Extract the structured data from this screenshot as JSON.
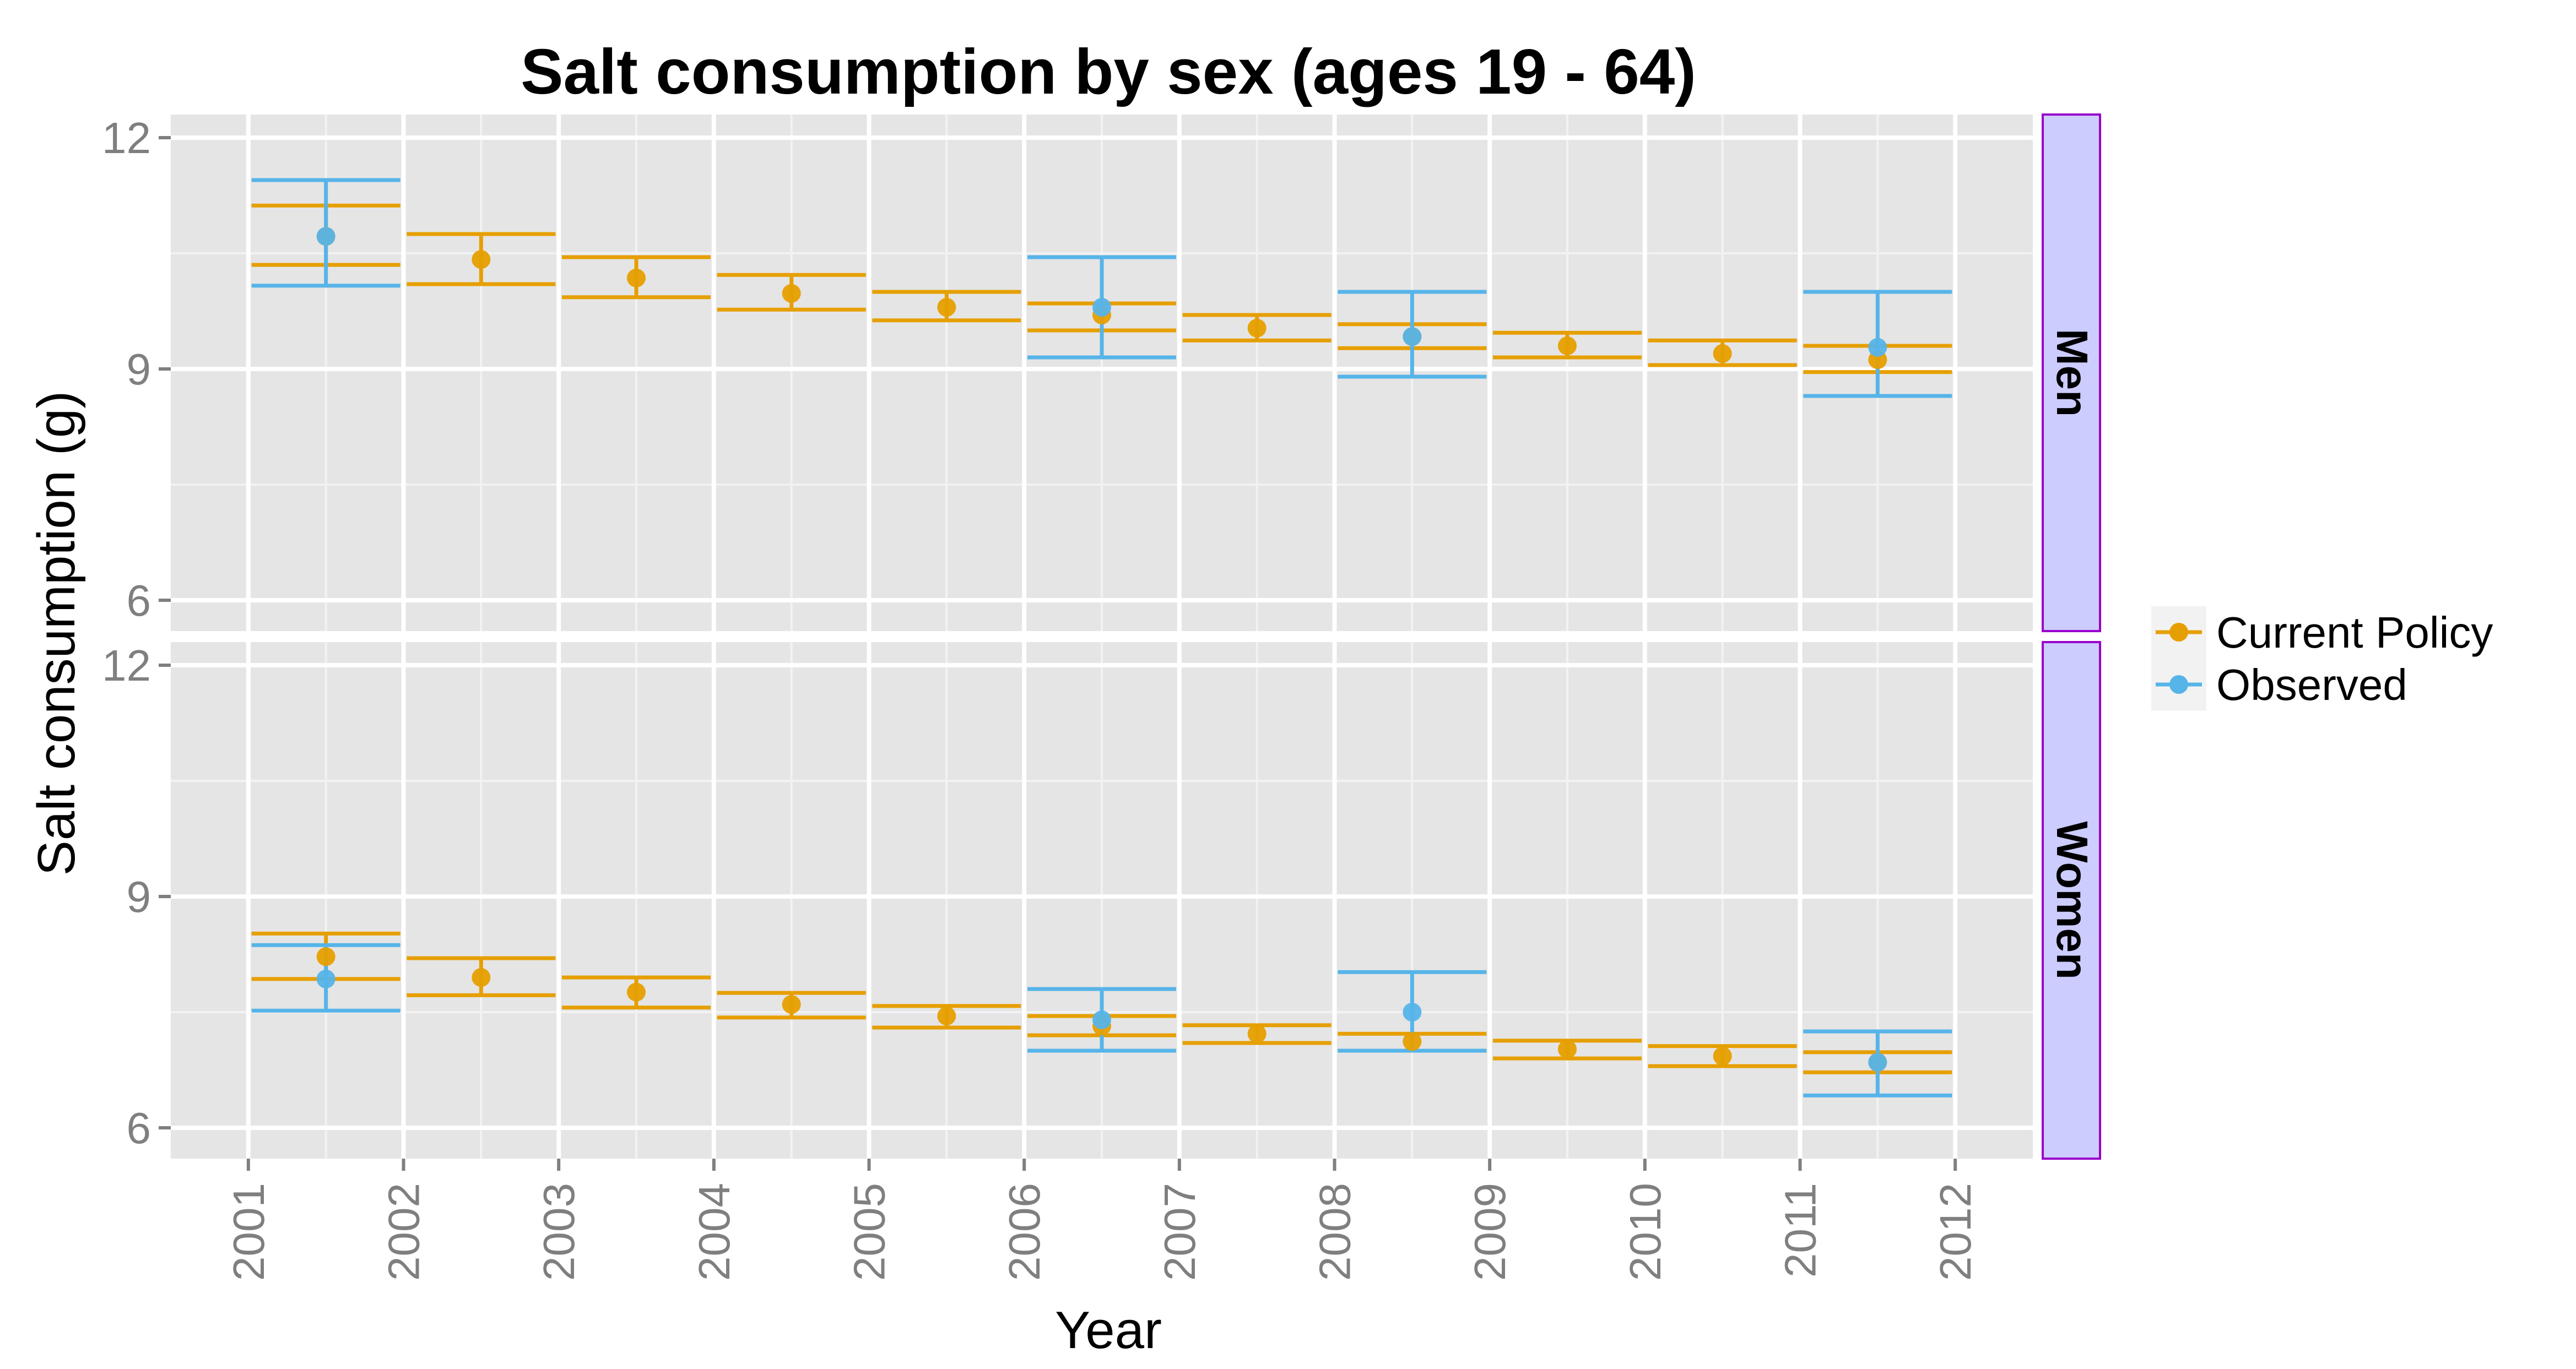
{
  "colors": {
    "panel_bg": "#E5E5E5",
    "grid_major": "#FFFFFF",
    "grid_minor": "#F2F2F2",
    "strip_fill": "#CCCCFF",
    "strip_border": "#9900CC",
    "current_policy": "#E69F00",
    "observed": "#56B4E9",
    "tick_text": "#7F7F7F"
  },
  "chart_data": {
    "type": "scatter",
    "subtype": "point-errorbar, faceted",
    "title": "Salt consumption by sex (ages 19 - 64)",
    "xlabel": "Year",
    "ylabel": "Salt consumption (g)",
    "xlim": [
      2000.5,
      2012.5
    ],
    "ylim": [
      5.6,
      12.3
    ],
    "x_ticks": [
      2001,
      2002,
      2003,
      2004,
      2005,
      2006,
      2007,
      2008,
      2009,
      2010,
      2011,
      2012
    ],
    "x_tick_labels": [
      "2001",
      "2002",
      "2003",
      "2004",
      "2005",
      "2006",
      "2007",
      "2008",
      "2009",
      "2010",
      "2011",
      "2012"
    ],
    "y_ticks": [
      6,
      9,
      12
    ],
    "y_tick_labels": [
      "6",
      "9",
      "12"
    ],
    "grid": true,
    "legend": {
      "position": "right",
      "entries": [
        "Current Policy",
        "Observed"
      ]
    },
    "facets": [
      {
        "label": "Men",
        "series": [
          {
            "name": "Current Policy",
            "points": [
              {
                "x": 2001.5,
                "y": 10.72,
                "lower": 10.35,
                "upper": 11.12
              },
              {
                "x": 2002.5,
                "y": 10.42,
                "lower": 10.1,
                "upper": 10.75
              },
              {
                "x": 2003.5,
                "y": 10.18,
                "lower": 9.93,
                "upper": 10.45
              },
              {
                "x": 2004.5,
                "y": 9.98,
                "lower": 9.77,
                "upper": 10.22
              },
              {
                "x": 2005.5,
                "y": 9.8,
                "lower": 9.63,
                "upper": 10.0
              },
              {
                "x": 2006.5,
                "y": 9.7,
                "lower": 9.5,
                "upper": 9.85
              },
              {
                "x": 2007.5,
                "y": 9.53,
                "lower": 9.37,
                "upper": 9.7
              },
              {
                "x": 2008.5,
                "y": 9.42,
                "lower": 9.27,
                "upper": 9.58
              },
              {
                "x": 2009.5,
                "y": 9.3,
                "lower": 9.15,
                "upper": 9.47
              },
              {
                "x": 2010.5,
                "y": 9.2,
                "lower": 9.05,
                "upper": 9.37
              },
              {
                "x": 2011.5,
                "y": 9.12,
                "lower": 8.96,
                "upper": 9.3
              }
            ]
          },
          {
            "name": "Observed",
            "points": [
              {
                "x": 2001.5,
                "y": 10.72,
                "lower": 10.08,
                "upper": 11.45
              },
              {
                "x": 2006.5,
                "y": 9.8,
                "lower": 9.15,
                "upper": 10.45
              },
              {
                "x": 2008.5,
                "y": 9.42,
                "lower": 8.9,
                "upper": 10.0
              },
              {
                "x": 2011.5,
                "y": 9.28,
                "lower": 8.65,
                "upper": 10.0
              }
            ]
          }
        ]
      },
      {
        "label": "Women",
        "series": [
          {
            "name": "Current Policy",
            "points": [
              {
                "x": 2001.5,
                "y": 8.22,
                "lower": 7.93,
                "upper": 8.52
              },
              {
                "x": 2002.5,
                "y": 7.95,
                "lower": 7.72,
                "upper": 8.2
              },
              {
                "x": 2003.5,
                "y": 7.76,
                "lower": 7.56,
                "upper": 7.95
              },
              {
                "x": 2004.5,
                "y": 7.6,
                "lower": 7.43,
                "upper": 7.75
              },
              {
                "x": 2005.5,
                "y": 7.45,
                "lower": 7.3,
                "upper": 7.58
              },
              {
                "x": 2006.5,
                "y": 7.32,
                "lower": 7.2,
                "upper": 7.45
              },
              {
                "x": 2007.5,
                "y": 7.22,
                "lower": 7.1,
                "upper": 7.33
              },
              {
                "x": 2008.5,
                "y": 7.12,
                "lower": 7.0,
                "upper": 7.22
              },
              {
                "x": 2009.5,
                "y": 7.02,
                "lower": 6.9,
                "upper": 7.13
              },
              {
                "x": 2010.5,
                "y": 6.93,
                "lower": 6.8,
                "upper": 7.06
              },
              {
                "x": 2011.5,
                "y": 6.85,
                "lower": 6.72,
                "upper": 6.98
              }
            ]
          },
          {
            "name": "Observed",
            "points": [
              {
                "x": 2001.5,
                "y": 7.93,
                "lower": 7.52,
                "upper": 8.37
              },
              {
                "x": 2006.5,
                "y": 7.4,
                "lower": 7.0,
                "upper": 7.8
              },
              {
                "x": 2008.5,
                "y": 7.5,
                "lower": 7.0,
                "upper": 8.02
              },
              {
                "x": 2011.5,
                "y": 6.85,
                "lower": 6.42,
                "upper": 7.25
              }
            ]
          }
        ]
      }
    ]
  }
}
